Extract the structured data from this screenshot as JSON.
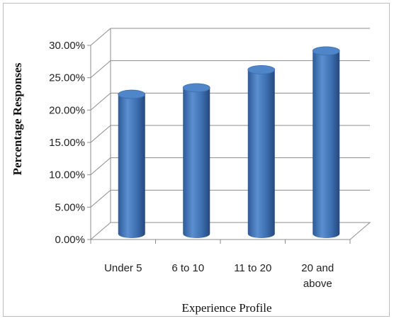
{
  "chart_data": {
    "type": "bar",
    "categories": [
      "Under 5",
      "6 to 10",
      "11 to 20",
      "20 and above"
    ],
    "category_lines": [
      [
        "Under 5"
      ],
      [
        "6 to 10"
      ],
      [
        "11 to 20"
      ],
      [
        "20 and",
        "above"
      ]
    ],
    "values": [
      22.0,
      23.0,
      25.8,
      28.7
    ],
    "ylabel": "Percentage Responses",
    "xlabel": "Experience Profile",
    "ylim": [
      0,
      30
    ],
    "yticks": [
      "0.00%",
      "5.00%",
      "10.00%",
      "15.00%",
      "20.00%",
      "25.00%",
      "30.00%"
    ],
    "grid": true,
    "bar_color": "#4a7ebb",
    "style": "3d-cylinder"
  }
}
